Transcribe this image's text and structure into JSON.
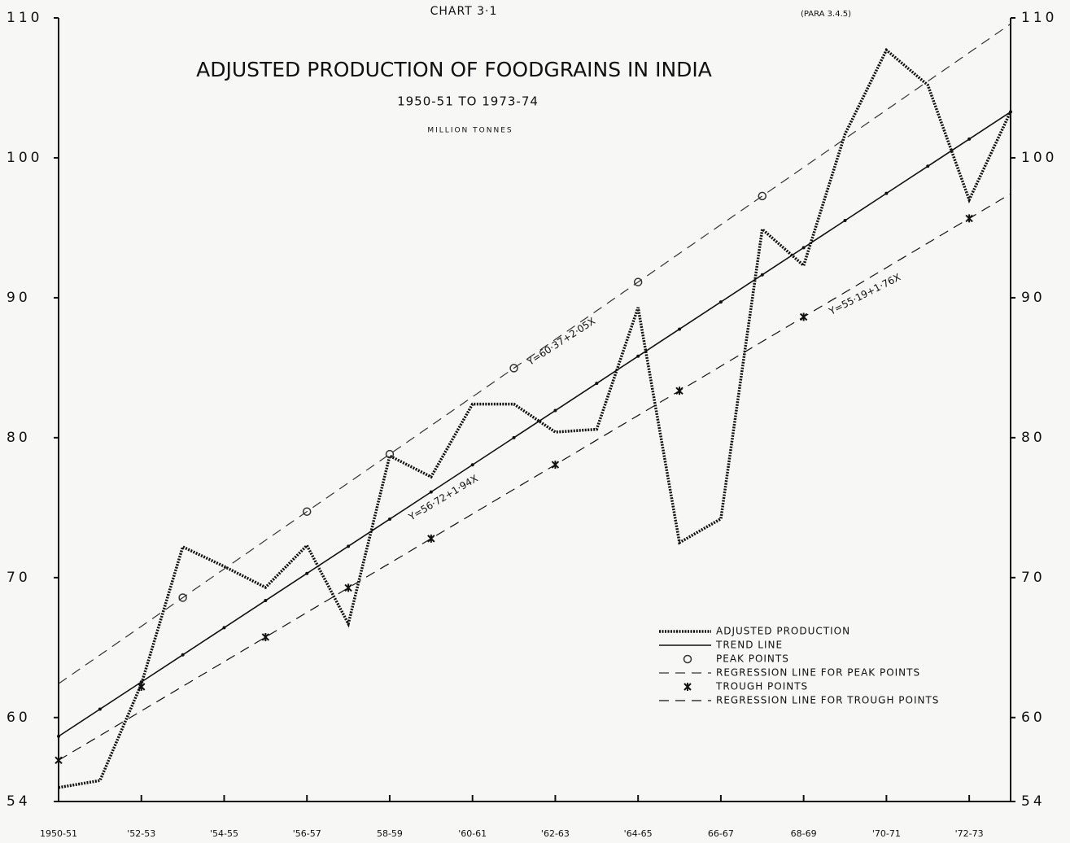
{
  "chart_data": {
    "type": "line",
    "chart_label": "CHART 3·1",
    "reference": "(PARA 3.4.5)",
    "title": "ADJUSTED PRODUCTION OF FOODGRAINS IN INDIA",
    "subtitle": "1950-51 TO 1973-74",
    "y_label": "MILLION TONNES",
    "categories": [
      "1950-51",
      null,
      "'52-53",
      null,
      "'54-55",
      null,
      "'56-57",
      null,
      "58-59",
      null,
      "'60-61",
      null,
      "'62-63",
      null,
      "'64-65",
      null,
      "66-67",
      null,
      "68-69",
      null,
      "'70-71",
      null,
      "'72-73",
      null
    ],
    "ylim": [
      54,
      110
    ],
    "yticks": [
      54,
      60,
      70,
      80,
      90,
      100,
      110
    ],
    "series": [
      {
        "name": "ADJUSTED PRODUCTION",
        "color": "#111",
        "style": "thick",
        "values": [
          55.0,
          55.5,
          62.4,
          72.2,
          70.8,
          69.3,
          72.3,
          66.7,
          78.7,
          77.2,
          82.4,
          82.4,
          80.4,
          80.6,
          89.3,
          72.5,
          74.2,
          94.9,
          92.3,
          101.7,
          107.7,
          105.2,
          97.0,
          103.3
        ]
      },
      {
        "name": "TREND LINE",
        "color": "#111",
        "style": "solid",
        "values": [
          58.66,
          60.6,
          62.54,
          64.48,
          66.42,
          68.36,
          70.3,
          72.24,
          74.18,
          76.12,
          78.06,
          80.0,
          81.94,
          83.88,
          85.82,
          87.76,
          89.7,
          91.64,
          93.58,
          95.52,
          97.46,
          99.4,
          101.34,
          103.28
        ]
      },
      {
        "name": "PEAK POINTS",
        "color": "#333",
        "style": "points",
        "marker": "circle",
        "values": [
          null,
          null,
          null,
          68.57,
          null,
          null,
          74.72,
          null,
          78.82,
          null,
          null,
          84.97,
          null,
          null,
          91.12,
          null,
          null,
          97.27,
          null,
          null,
          null,
          null,
          null,
          null
        ]
      },
      {
        "name": "REGRESSION LINE FOR PEAK POINTS",
        "color": "#333",
        "style": "dashed",
        "values": [
          62.42,
          64.47,
          66.52,
          68.57,
          70.62,
          72.67,
          74.72,
          76.77,
          78.82,
          80.87,
          82.92,
          84.97,
          87.02,
          89.07,
          91.12,
          93.17,
          95.22,
          97.27,
          99.32,
          101.37,
          103.42,
          105.47,
          107.52,
          109.57
        ]
      },
      {
        "name": "TROUGH POINTS",
        "color": "#111",
        "style": "points",
        "marker": "star",
        "values": [
          56.95,
          null,
          62.2,
          null,
          null,
          65.75,
          null,
          69.27,
          null,
          72.79,
          null,
          null,
          78.07,
          null,
          null,
          83.35,
          null,
          null,
          88.63,
          null,
          null,
          null,
          95.67,
          null
        ]
      },
      {
        "name": "REGRESSION LINE FOR TROUGH POINTS",
        "color": "#111",
        "style": "dashed",
        "values": [
          56.95,
          58.71,
          60.47,
          62.23,
          63.99,
          65.75,
          67.51,
          69.27,
          71.03,
          72.79,
          74.55,
          76.31,
          78.07,
          79.83,
          81.59,
          83.35,
          85.11,
          86.87,
          88.63,
          90.39,
          92.15,
          93.91,
          95.67,
          97.43
        ]
      }
    ],
    "annotations": [
      "Y=60·37+2·05X",
      "Y=56·72+1·94X",
      "Y=55·19+1·76X"
    ]
  }
}
